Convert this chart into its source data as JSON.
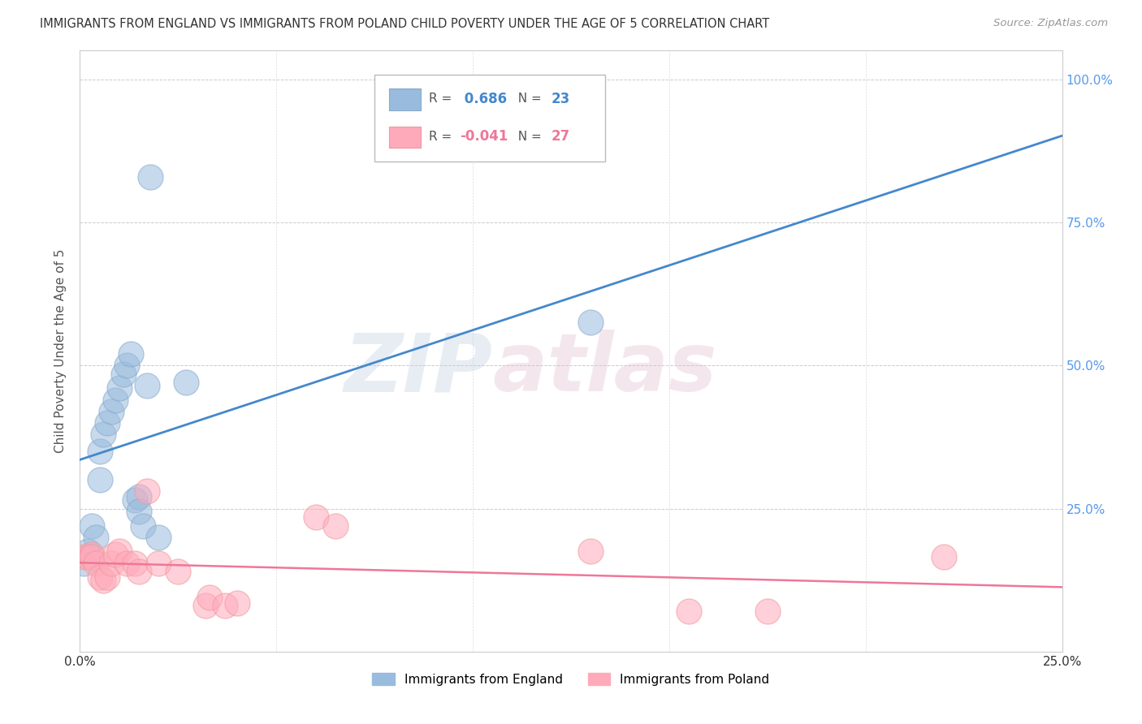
{
  "title": "IMMIGRANTS FROM ENGLAND VS IMMIGRANTS FROM POLAND CHILD POVERTY UNDER THE AGE OF 5 CORRELATION CHART",
  "source": "Source: ZipAtlas.com",
  "ylabel": "Child Poverty Under the Age of 5",
  "xlim": [
    0,
    0.25
  ],
  "ylim": [
    0,
    1.05
  ],
  "watermark_zip": "ZIP",
  "watermark_atlas": "atlas",
  "england_R": 0.686,
  "england_N": 23,
  "poland_R": -0.041,
  "poland_N": 27,
  "england_color": "#99BBDD",
  "england_edge_color": "#88AACC",
  "poland_color": "#FFAABB",
  "poland_edge_color": "#EE9999",
  "england_line_color": "#4488CC",
  "poland_line_color": "#EE7799",
  "england_points": [
    [
      0.001,
      0.155
    ],
    [
      0.002,
      0.175
    ],
    [
      0.003,
      0.22
    ],
    [
      0.004,
      0.2
    ],
    [
      0.005,
      0.3
    ],
    [
      0.005,
      0.35
    ],
    [
      0.006,
      0.38
    ],
    [
      0.007,
      0.4
    ],
    [
      0.008,
      0.42
    ],
    [
      0.009,
      0.44
    ],
    [
      0.01,
      0.46
    ],
    [
      0.011,
      0.485
    ],
    [
      0.012,
      0.5
    ],
    [
      0.013,
      0.52
    ],
    [
      0.014,
      0.265
    ],
    [
      0.015,
      0.27
    ],
    [
      0.015,
      0.245
    ],
    [
      0.016,
      0.22
    ],
    [
      0.017,
      0.465
    ],
    [
      0.018,
      0.83
    ],
    [
      0.02,
      0.2
    ],
    [
      0.027,
      0.47
    ],
    [
      0.13,
      0.575
    ]
  ],
  "poland_points": [
    [
      0.001,
      0.165
    ],
    [
      0.002,
      0.165
    ],
    [
      0.003,
      0.17
    ],
    [
      0.003,
      0.165
    ],
    [
      0.004,
      0.155
    ],
    [
      0.005,
      0.13
    ],
    [
      0.006,
      0.125
    ],
    [
      0.007,
      0.13
    ],
    [
      0.008,
      0.155
    ],
    [
      0.009,
      0.17
    ],
    [
      0.01,
      0.175
    ],
    [
      0.012,
      0.155
    ],
    [
      0.014,
      0.155
    ],
    [
      0.015,
      0.14
    ],
    [
      0.017,
      0.28
    ],
    [
      0.02,
      0.155
    ],
    [
      0.025,
      0.14
    ],
    [
      0.032,
      0.08
    ],
    [
      0.033,
      0.095
    ],
    [
      0.037,
      0.08
    ],
    [
      0.04,
      0.085
    ],
    [
      0.06,
      0.235
    ],
    [
      0.065,
      0.22
    ],
    [
      0.13,
      0.175
    ],
    [
      0.155,
      0.07
    ],
    [
      0.175,
      0.07
    ],
    [
      0.22,
      0.165
    ]
  ],
  "legend_entries": [
    {
      "label": "Immigrants from England",
      "color": "#99BBDD"
    },
    {
      "label": "Immigrants from Poland",
      "color": "#FFAABB"
    }
  ]
}
